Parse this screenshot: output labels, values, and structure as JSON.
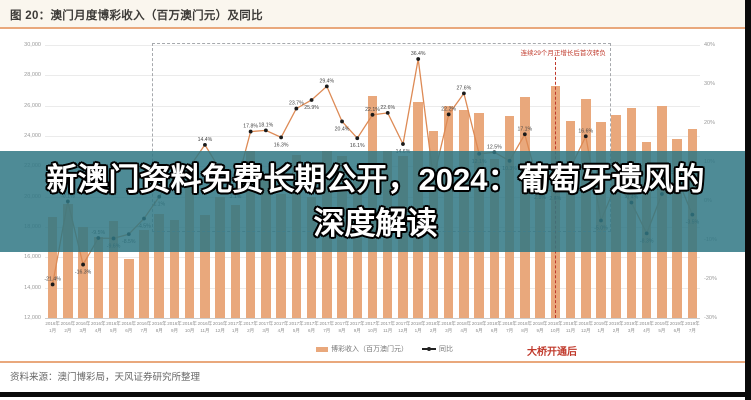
{
  "header": {
    "title": "图 20：澳门月度博彩收入（百万澳门元）及同比"
  },
  "banner": {
    "line1": "新澳门资料免费长期公开，2024：葡萄牙遗风的",
    "line2": "深度解读",
    "bg": "rgba(47,119,132,0.85)"
  },
  "colors": {
    "bar": "#e9a87c",
    "line": "#dd8a55",
    "marker": "#1a1a1a",
    "accent_rule": "#e9a87c",
    "annotation_red": "#c0392b",
    "grid": "#ebebeb"
  },
  "chart_data": {
    "type": "bar",
    "title": "澳门月度博彩收入（百万澳门元）及同比",
    "categories": [
      "2016年1月",
      "2016年2月",
      "2016年3月",
      "2016年4月",
      "2016年5月",
      "2016年6月",
      "2016年7月",
      "2016年8月",
      "2016年9月",
      "2016年10月",
      "2016年11月",
      "2016年12月",
      "2017年1月",
      "2017年2月",
      "2017年3月",
      "2017年4月",
      "2017年5月",
      "2017年6月",
      "2017年7月",
      "2017年8月",
      "2017年9月",
      "2017年10月",
      "2017年11月",
      "2017年12月",
      "2018年1月",
      "2018年2月",
      "2018年3月",
      "2018年4月",
      "2018年5月",
      "2018年6月",
      "2018年7月",
      "2018年8月",
      "2018年9月",
      "2018年10月",
      "2018年11月",
      "2018年12月",
      "2019年1月",
      "2019年2月",
      "2019年3月",
      "2019年4月",
      "2019年5月",
      "2019年6月",
      "2019年7月"
    ],
    "series": [
      {
        "name": "博彩收入（百万澳门元）",
        "type": "bar",
        "axis": "left",
        "values": [
          18674,
          19519,
          17980,
          17336,
          18389,
          15883,
          17771,
          18837,
          18434,
          21807,
          18771,
          19975,
          19455,
          22989,
          21224,
          20164,
          22743,
          19992,
          22997,
          22676,
          21408,
          26630,
          23000,
          22700,
          26265,
          24312,
          25952,
          25727,
          25488,
          22490,
          25327,
          26559,
          21952,
          27328,
          24995,
          26467,
          24942,
          25370,
          25840,
          23588,
          25952,
          23812,
          24453
        ]
      },
      {
        "name": "同比",
        "type": "line",
        "axis": "right",
        "values": [
          -21.4,
          -0.1,
          -16.3,
          -9.5,
          -9.6,
          -8.5,
          -4.5,
          1.1,
          7.4,
          8.8,
          14.4,
          8.0,
          3.1,
          17.8,
          18.1,
          16.3,
          23.7,
          25.9,
          29.4,
          20.4,
          16.1,
          22.1,
          22.6,
          14.6,
          36.4,
          5.7,
          22.2,
          27.6,
          12.1,
          12.5,
          10.3,
          17.1,
          2.8,
          2.6,
          8.5,
          16.6,
          -5.0,
          4.4,
          -0.4,
          -8.3,
          1.8,
          5.9,
          -3.5
        ]
      }
    ],
    "left_axis": {
      "min": 12000,
      "max": 30000,
      "step": 2000,
      "ticks": [
        "30,000",
        "28,000",
        "26,000",
        "24,000",
        "22,000",
        "20,000",
        "18,000",
        "16,000",
        "14,000",
        "12,000"
      ]
    },
    "right_axis": {
      "min": -30,
      "max": 40,
      "step": 10,
      "ticks": [
        "40%",
        "30%",
        "20%",
        "10%",
        "0%",
        "-10%",
        "-20%",
        "-30%"
      ]
    },
    "grid": "on",
    "legend_position": "bottom",
    "dashed_box": {
      "from": "2016年8月",
      "to": "2019年1月"
    },
    "bridge_line_at": "2018年10月"
  },
  "annotations": {
    "growth_streak": "连续29个月正增长后首次转负",
    "bridge_after": "大桥开通后"
  },
  "legend": {
    "bar_label": "博彩收入（百万澳门元）",
    "line_label": "同比"
  },
  "footer": {
    "source": "资料来源：澳门博彩局，天风证券研究所整理"
  }
}
